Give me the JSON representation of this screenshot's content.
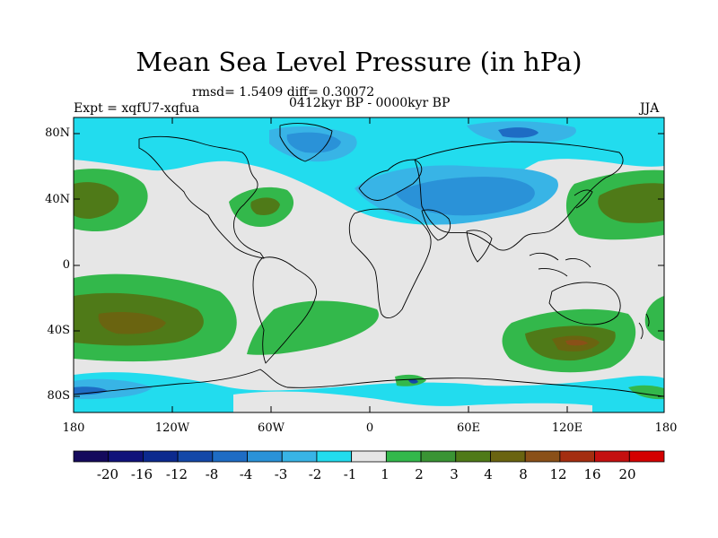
{
  "title": "Mean Sea Level Pressure (in hPa)",
  "stats": "rmsd= 1.5409 diff= 0.30072",
  "period": "0412kyr BP - 0000kyr BP",
  "experiment": "Expt = xqfU7-xqfua",
  "season": "JJA",
  "lat_ticks": [
    "80N",
    "40N",
    "0",
    "40S",
    "80S"
  ],
  "lon_ticks": [
    "180",
    "120W",
    "60W",
    "0",
    "60E",
    "120E",
    "180"
  ],
  "colorbar": {
    "labels": [
      "-20",
      "-16",
      "-12",
      "-8",
      "-4",
      "-3",
      "-2",
      "-1",
      "1",
      "2",
      "3",
      "4",
      "8",
      "12",
      "16",
      "20"
    ],
    "colors": [
      "#150a5c",
      "#10127a",
      "#0c2a8e",
      "#1448a8",
      "#1e6cc4",
      "#2a92d8",
      "#38b4e6",
      "#22dcee",
      "#e6e6e6",
      "#33b84b",
      "#3a9434",
      "#4f7a18",
      "#6a6410",
      "#8a5018",
      "#a42e10",
      "#c41010",
      "#d40000"
    ]
  },
  "colors": {
    "land_outline": "#000000",
    "background_field": "#e6e6e6"
  }
}
